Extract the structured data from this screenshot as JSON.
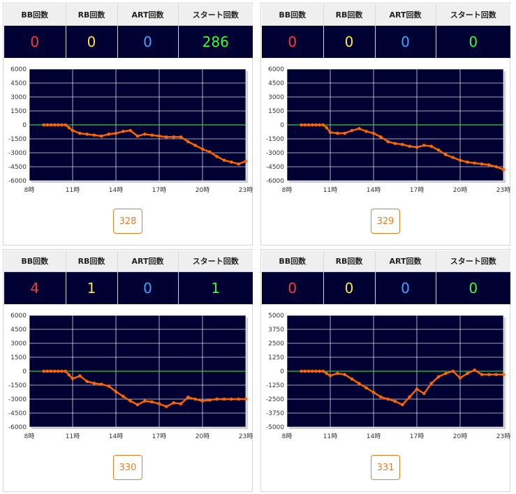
{
  "panels": [
    {
      "headers": [
        "BB回数",
        "RB回数",
        "ART回数",
        "スタート回数"
      ],
      "stats": [
        {
          "value": "0",
          "color": "#ff3b3b"
        },
        {
          "value": "0",
          "color": "#ffe14a"
        },
        {
          "value": "0",
          "color": "#33aaff"
        },
        {
          "value": "286",
          "color": "#33ff33"
        }
      ],
      "machine_button": "328",
      "chart_data": {
        "type": "line",
        "x_tick_labels": [
          "8時",
          "11時",
          "14時",
          "17時",
          "20時",
          "23時"
        ],
        "y_tick_labels": [
          "6000",
          "4500",
          "3000",
          "1500",
          "0",
          "-1500",
          "-3000",
          "-4500",
          "-6000"
        ],
        "xlim": [
          8,
          23
        ],
        "ylim": [
          -6000,
          6000
        ],
        "zero_line_color": "#33cc33",
        "line_color": "#ff6600",
        "series": [
          {
            "x": [
              9,
              9.25,
              9.5,
              9.75,
              10,
              10.25,
              10.5,
              10.75,
              11,
              11.5,
              12,
              12.5,
              13,
              13.5,
              14,
              14.5,
              15,
              15.5,
              16,
              16.5,
              17,
              17.5,
              18,
              18.5,
              19,
              19.5,
              20,
              20.5,
              21,
              21.5,
              22,
              22.5,
              23
            ],
            "y": [
              0,
              0,
              0,
              0,
              0,
              0,
              0,
              -300,
              -600,
              -900,
              -1000,
              -1100,
              -1200,
              -1000,
              -900,
              -700,
              -600,
              -1200,
              -1000,
              -1100,
              -1200,
              -1300,
              -1300,
              -1300,
              -1800,
              -2200,
              -2600,
              -2900,
              -3400,
              -3800,
              -4000,
              -4200,
              -3900
            ]
          }
        ]
      }
    },
    {
      "headers": [
        "BB回数",
        "RB回数",
        "ART回数",
        "スタート回数"
      ],
      "stats": [
        {
          "value": "0",
          "color": "#ff3b3b"
        },
        {
          "value": "0",
          "color": "#ffe14a"
        },
        {
          "value": "0",
          "color": "#33aaff"
        },
        {
          "value": "0",
          "color": "#33ff33"
        }
      ],
      "machine_button": "329",
      "chart_data": {
        "type": "line",
        "x_tick_labels": [
          "8時",
          "11時",
          "14時",
          "17時",
          "20時",
          "23時"
        ],
        "y_tick_labels": [
          "6000",
          "4500",
          "3000",
          "1500",
          "0",
          "-1500",
          "-3000",
          "-4500",
          "-6000"
        ],
        "xlim": [
          8,
          23
        ],
        "ylim": [
          -6000,
          6000
        ],
        "zero_line_color": "#33cc33",
        "line_color": "#ff6600",
        "series": [
          {
            "x": [
              9,
              9.25,
              9.5,
              9.75,
              10,
              10.25,
              10.5,
              10.75,
              11,
              11.5,
              12,
              12.5,
              13,
              13.5,
              14,
              14.5,
              15,
              15.5,
              16,
              16.5,
              17,
              17.5,
              18,
              18.5,
              19,
              19.5,
              20,
              20.5,
              21,
              21.5,
              22,
              22.5,
              23
            ],
            "y": [
              0,
              0,
              0,
              0,
              0,
              0,
              0,
              -300,
              -800,
              -900,
              -900,
              -600,
              -400,
              -700,
              -900,
              -1300,
              -1800,
              -2000,
              -2100,
              -2300,
              -2400,
              -2200,
              -2300,
              -2700,
              -3200,
              -3500,
              -3800,
              -4000,
              -4100,
              -4200,
              -4300,
              -4500,
              -4800
            ]
          }
        ]
      }
    },
    {
      "headers": [
        "BB回数",
        "RB回数",
        "ART回数",
        "スタート回数"
      ],
      "stats": [
        {
          "value": "4",
          "color": "#ff3b3b"
        },
        {
          "value": "1",
          "color": "#ffe14a"
        },
        {
          "value": "0",
          "color": "#33aaff"
        },
        {
          "value": "1",
          "color": "#33ff33"
        }
      ],
      "machine_button": "330",
      "chart_data": {
        "type": "line",
        "x_tick_labels": [
          "8時",
          "11時",
          "14時",
          "17時",
          "20時",
          "23時"
        ],
        "y_tick_labels": [
          "6000",
          "4500",
          "3000",
          "1500",
          "0",
          "-1500",
          "-3000",
          "-4500",
          "-6000"
        ],
        "xlim": [
          8,
          23
        ],
        "ylim": [
          -6000,
          6000
        ],
        "zero_line_color": "#33cc33",
        "line_color": "#ff6600",
        "series": [
          {
            "x": [
              9,
              9.25,
              9.5,
              9.75,
              10,
              10.25,
              10.5,
              10.75,
              11,
              11.5,
              12,
              12.5,
              13,
              13.5,
              14,
              14.5,
              15,
              15.5,
              16,
              16.5,
              17,
              17.5,
              18,
              18.5,
              19,
              19.5,
              20,
              20.5,
              21,
              21.5,
              22,
              22.5,
              23
            ],
            "y": [
              0,
              0,
              0,
              0,
              0,
              0,
              0,
              -400,
              -800,
              -500,
              -1100,
              -1300,
              -1400,
              -1600,
              -2200,
              -2700,
              -3200,
              -3600,
              -3200,
              -3300,
              -3500,
              -3800,
              -3400,
              -3500,
              -2800,
              -3000,
              -3200,
              -3100,
              -3000,
              -3000,
              -3000,
              -3000,
              -3000
            ]
          }
        ]
      }
    },
    {
      "headers": [
        "BB回数",
        "RB回数",
        "ART回数",
        "スタート回数"
      ],
      "stats": [
        {
          "value": "0",
          "color": "#ff3b3b"
        },
        {
          "value": "0",
          "color": "#ffe14a"
        },
        {
          "value": "0",
          "color": "#33aaff"
        },
        {
          "value": "0",
          "color": "#33ff33"
        }
      ],
      "machine_button": "331",
      "chart_data": {
        "type": "line",
        "x_tick_labels": [
          "8時",
          "11時",
          "14時",
          "17時",
          "20時",
          "23時"
        ],
        "y_tick_labels": [
          "5000",
          "3750",
          "2500",
          "1250",
          "0",
          "-1250",
          "-2500",
          "-3750",
          "-5000"
        ],
        "xlim": [
          8,
          23
        ],
        "ylim": [
          -5000,
          5000
        ],
        "zero_line_color": "#33cc33",
        "line_color": "#ff6600",
        "series": [
          {
            "x": [
              9,
              9.25,
              9.5,
              9.75,
              10,
              10.25,
              10.5,
              10.75,
              11,
              11.5,
              12,
              12.5,
              13,
              13.5,
              14,
              14.5,
              15,
              15.5,
              16,
              16.5,
              17,
              17.5,
              18,
              18.5,
              19,
              19.5,
              20,
              20.5,
              21,
              21.5,
              22,
              22.5,
              23
            ],
            "y": [
              0,
              0,
              0,
              0,
              0,
              0,
              0,
              -200,
              -400,
              -200,
              -300,
              -700,
              -1100,
              -1500,
              -1900,
              -2300,
              -2500,
              -2700,
              -3000,
              -2300,
              -1600,
              -2000,
              -1100,
              -500,
              -200,
              0,
              -600,
              -200,
              100,
              -300,
              -300,
              -300,
              -300
            ]
          }
        ]
      }
    }
  ]
}
